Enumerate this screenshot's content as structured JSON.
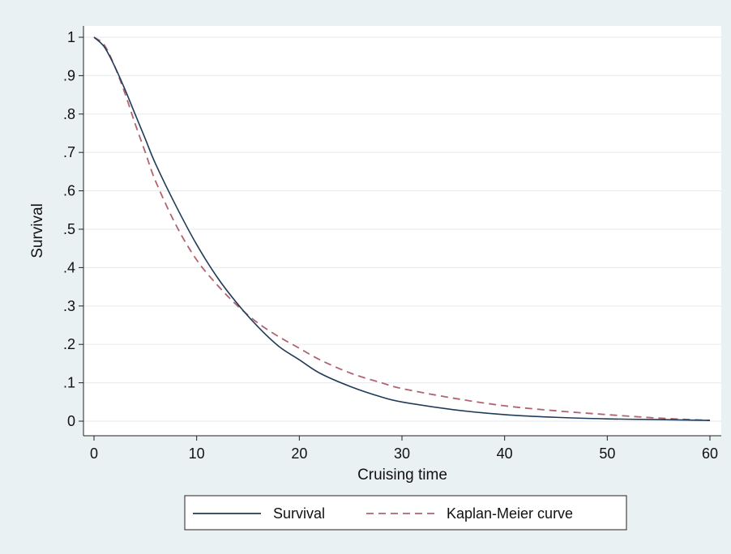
{
  "chart_data": {
    "type": "line",
    "title": "",
    "xlabel": "Cruising time",
    "ylabel": "Survival",
    "xlim": [
      0,
      60
    ],
    "ylim": [
      0,
      1
    ],
    "x_ticks": [
      0,
      10,
      20,
      30,
      40,
      50,
      60
    ],
    "x_tick_labels": [
      "0",
      "10",
      "20",
      "30",
      "40",
      "50",
      "60"
    ],
    "y_ticks": [
      0,
      0.1,
      0.2,
      0.3,
      0.4,
      0.5,
      0.6,
      0.7,
      0.8,
      0.9,
      1
    ],
    "y_tick_labels": [
      "0",
      ".1",
      ".2",
      ".3",
      ".4",
      ".5",
      ".6",
      ".7",
      ".8",
      ".9",
      "1"
    ],
    "grid": true,
    "legend_position": "bottom",
    "background_color": "#eaf1f3",
    "plot_background_color": "#ffffff",
    "grid_color": "#e8eef0",
    "series": [
      {
        "name": "Survival",
        "style": "solid",
        "color": "#1f3b57",
        "x": [
          0,
          1,
          2,
          3,
          4,
          5,
          6,
          8,
          10,
          12,
          14,
          16,
          18,
          20,
          22,
          25,
          28,
          30,
          35,
          40,
          45,
          50,
          55,
          60
        ],
        "y": [
          1.0,
          0.975,
          0.925,
          0.865,
          0.8,
          0.735,
          0.67,
          0.56,
          0.46,
          0.375,
          0.305,
          0.245,
          0.195,
          0.16,
          0.125,
          0.09,
          0.063,
          0.05,
          0.03,
          0.017,
          0.01,
          0.006,
          0.004,
          0.002
        ]
      },
      {
        "name": "Kaplan-Meier curve",
        "style": "dashed",
        "color": "#b06470",
        "x": [
          0,
          1,
          2,
          3,
          4,
          5,
          6,
          8,
          10,
          12,
          14,
          16,
          18,
          20,
          22,
          25,
          28,
          30,
          35,
          40,
          45,
          50,
          55,
          60
        ],
        "y": [
          1.0,
          0.98,
          0.925,
          0.855,
          0.775,
          0.7,
          0.625,
          0.51,
          0.42,
          0.355,
          0.3,
          0.255,
          0.22,
          0.19,
          0.16,
          0.125,
          0.1,
          0.085,
          0.06,
          0.04,
          0.027,
          0.017,
          0.008,
          0.002
        ]
      }
    ]
  }
}
